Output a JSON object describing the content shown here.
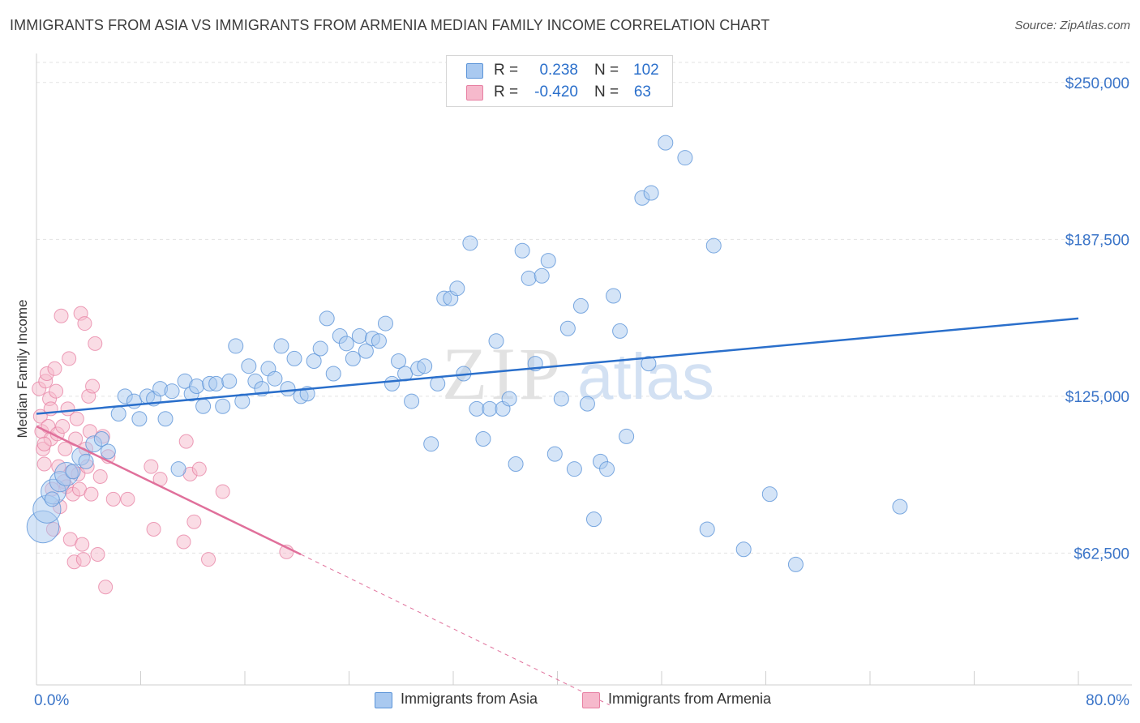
{
  "header": {
    "title": "IMMIGRANTS FROM ASIA VS IMMIGRANTS FROM ARMENIA MEDIAN FAMILY INCOME CORRELATION CHART",
    "source": "Source: ZipAtlas.com"
  },
  "legend": {
    "asia": {
      "r_label": "R =",
      "r_value": "0.238",
      "n_label": "N =",
      "n_value": "102"
    },
    "armenia": {
      "r_label": "R =",
      "r_value": "-0.420",
      "n_label": "N =",
      "n_value": "63"
    }
  },
  "bottom_legend": {
    "asia": "Immigrants from Asia",
    "armenia": "Immigrants from Armenia"
  },
  "watermark": {
    "zip": "ZIP",
    "atlas": "atlas"
  },
  "colors": {
    "asia_fill": "#a9c9f0",
    "asia_stroke": "#5b94d8",
    "asia_line": "#2a6fcb",
    "armenia_fill": "#f6b9cc",
    "armenia_stroke": "#e77fa2",
    "armenia_line": "#e0709b",
    "tick_label": "#3a74c8",
    "grid": "#e3e3e3"
  },
  "chart_data": {
    "type": "scatter",
    "title": "IMMIGRANTS FROM ASIA VS IMMIGRANTS FROM ARMENIA MEDIAN FAMILY INCOME CORRELATION CHART",
    "xlabel": "",
    "ylabel": "Median Family Income",
    "xlim": [
      0,
      80
    ],
    "ylim": [
      10000,
      258000
    ],
    "x_tick_labels": [
      "0.0%",
      "80.0%"
    ],
    "y_ticks": [
      62500,
      125000,
      187500,
      250000
    ],
    "y_tick_labels": [
      "$62,500",
      "$125,000",
      "$187,500",
      "$250,000"
    ],
    "grid": true,
    "series": [
      {
        "name": "Immigrants from Asia",
        "R": 0.238,
        "N": 102,
        "trend": {
          "x": [
            0,
            80
          ],
          "y": [
            118000,
            156000
          ]
        },
        "points": [
          [
            0.5,
            73000,
            2.2
          ],
          [
            0.8,
            80000,
            1.9
          ],
          [
            1.3,
            87000,
            1.7
          ],
          [
            1.8,
            91000,
            1.4
          ],
          [
            2.3,
            94000,
            1.6
          ],
          [
            3.4,
            101000,
            1.2
          ],
          [
            4.4,
            106000,
            1.1
          ],
          [
            5.0,
            108000,
            1.0
          ],
          [
            5.5,
            103000,
            1.0
          ],
          [
            6.3,
            118000,
            1.0
          ],
          [
            6.8,
            125000,
            1.0
          ],
          [
            7.5,
            123000,
            1.0
          ],
          [
            7.9,
            116000,
            1.0
          ],
          [
            8.5,
            125000,
            1.0
          ],
          [
            9.0,
            124000,
            1.0
          ],
          [
            9.5,
            128000,
            1.0
          ],
          [
            9.9,
            116000,
            1.0
          ],
          [
            10.4,
            127000,
            1.0
          ],
          [
            10.9,
            96000,
            1.0
          ],
          [
            11.4,
            131000,
            1.0
          ],
          [
            11.9,
            126000,
            1.0
          ],
          [
            12.3,
            129000,
            1.0
          ],
          [
            12.8,
            121000,
            1.0
          ],
          [
            13.3,
            130000,
            1.0
          ],
          [
            13.8,
            130000,
            1.0
          ],
          [
            14.3,
            121000,
            1.0
          ],
          [
            14.8,
            131000,
            1.0
          ],
          [
            15.3,
            145000,
            1.0
          ],
          [
            15.8,
            123000,
            1.0
          ],
          [
            16.3,
            137000,
            1.0
          ],
          [
            16.8,
            131000,
            1.0
          ],
          [
            17.3,
            128000,
            1.0
          ],
          [
            17.8,
            136000,
            1.0
          ],
          [
            18.3,
            132000,
            1.0
          ],
          [
            18.8,
            145000,
            1.0
          ],
          [
            19.3,
            128000,
            1.0
          ],
          [
            19.8,
            140000,
            1.0
          ],
          [
            20.3,
            125000,
            1.0
          ],
          [
            20.8,
            126000,
            1.0
          ],
          [
            21.3,
            139000,
            1.0
          ],
          [
            21.8,
            144000,
            1.0
          ],
          [
            22.3,
            156000,
            1.0
          ],
          [
            22.8,
            134000,
            1.0
          ],
          [
            23.3,
            149000,
            1.0
          ],
          [
            23.8,
            146000,
            1.0
          ],
          [
            24.3,
            140000,
            1.0
          ],
          [
            24.8,
            149000,
            1.0
          ],
          [
            25.3,
            143000,
            1.0
          ],
          [
            25.8,
            148000,
            1.0
          ],
          [
            26.3,
            147000,
            1.0
          ],
          [
            26.8,
            154000,
            1.0
          ],
          [
            27.3,
            130000,
            1.0
          ],
          [
            27.8,
            139000,
            1.0
          ],
          [
            28.3,
            134000,
            1.0
          ],
          [
            28.8,
            123000,
            1.0
          ],
          [
            29.3,
            136000,
            1.0
          ],
          [
            29.8,
            137000,
            1.0
          ],
          [
            30.3,
            106000,
            1.0
          ],
          [
            30.8,
            130000,
            1.0
          ],
          [
            31.3,
            164000,
            1.0
          ],
          [
            31.8,
            164000,
            1.0
          ],
          [
            32.3,
            168000,
            1.0
          ],
          [
            32.8,
            134000,
            1.0
          ],
          [
            33.3,
            186000,
            1.0
          ],
          [
            33.8,
            120000,
            1.0
          ],
          [
            34.3,
            108000,
            1.0
          ],
          [
            34.8,
            120000,
            1.0
          ],
          [
            35.3,
            147000,
            1.0
          ],
          [
            35.8,
            120000,
            1.0
          ],
          [
            36.3,
            124000,
            1.0
          ],
          [
            36.8,
            98000,
            1.0
          ],
          [
            37.3,
            183000,
            1.0
          ],
          [
            37.8,
            172000,
            1.0
          ],
          [
            38.3,
            138000,
            1.0
          ],
          [
            38.8,
            173000,
            1.0
          ],
          [
            39.3,
            179000,
            1.0
          ],
          [
            39.8,
            102000,
            1.0
          ],
          [
            40.3,
            124000,
            1.0
          ],
          [
            40.8,
            152000,
            1.0
          ],
          [
            41.3,
            96000,
            1.0
          ],
          [
            41.8,
            161000,
            1.0
          ],
          [
            42.3,
            122000,
            1.0
          ],
          [
            42.8,
            76000,
            1.0
          ],
          [
            43.3,
            99000,
            1.0
          ],
          [
            43.8,
            96000,
            1.0
          ],
          [
            44.3,
            165000,
            1.0
          ],
          [
            44.8,
            151000,
            1.0
          ],
          [
            45.3,
            109000,
            1.0
          ],
          [
            46.5,
            204000,
            1.0
          ],
          [
            47.2,
            206000,
            1.0
          ],
          [
            47.0,
            138000,
            1.0
          ],
          [
            48.3,
            226000,
            1.0
          ],
          [
            49.8,
            220000,
            1.0
          ],
          [
            51.5,
            72000,
            1.0
          ],
          [
            52.0,
            185000,
            1.0
          ],
          [
            54.3,
            64000,
            1.0
          ],
          [
            56.3,
            86000,
            1.0
          ],
          [
            58.3,
            58000,
            1.0
          ],
          [
            66.3,
            81000,
            1.0
          ],
          [
            1.2,
            84000,
            1.0
          ],
          [
            2.8,
            95000,
            1.0
          ],
          [
            3.8,
            99000,
            1.0
          ]
        ]
      },
      {
        "name": "Immigrants from Armenia",
        "R": -0.42,
        "N": 63,
        "trend": {
          "x": [
            0,
            20.3
          ],
          "y": [
            113000,
            62000
          ]
        },
        "trend_dashed": {
          "x": [
            20.3,
            44
          ],
          "y": [
            62000,
            2000
          ]
        },
        "points": [
          [
            0.2,
            128000
          ],
          [
            0.3,
            117000
          ],
          [
            0.4,
            111000
          ],
          [
            0.5,
            104000
          ],
          [
            0.6,
            98000
          ],
          [
            0.7,
            131000
          ],
          [
            0.8,
            134000
          ],
          [
            0.9,
            113000
          ],
          [
            1.0,
            124000
          ],
          [
            1.1,
            108000
          ],
          [
            1.2,
            88000
          ],
          [
            1.3,
            72000
          ],
          [
            1.4,
            136000
          ],
          [
            1.5,
            127000
          ],
          [
            1.6,
            110000
          ],
          [
            1.7,
            97000
          ],
          [
            1.8,
            81000
          ],
          [
            1.9,
            157000
          ],
          [
            2.0,
            113000
          ],
          [
            2.1,
            91000
          ],
          [
            2.2,
            104000
          ],
          [
            2.3,
            89000
          ],
          [
            2.4,
            120000
          ],
          [
            2.5,
            140000
          ],
          [
            2.6,
            68000
          ],
          [
            2.7,
            95000
          ],
          [
            2.8,
            86000
          ],
          [
            2.9,
            59000
          ],
          [
            3.0,
            108000
          ],
          [
            3.1,
            116000
          ],
          [
            3.2,
            94000
          ],
          [
            3.3,
            88000
          ],
          [
            3.4,
            158000
          ],
          [
            3.5,
            66000
          ],
          [
            3.6,
            60000
          ],
          [
            3.7,
            154000
          ],
          [
            3.8,
            104000
          ],
          [
            3.9,
            97000
          ],
          [
            4.0,
            125000
          ],
          [
            4.1,
            111000
          ],
          [
            4.2,
            86000
          ],
          [
            4.3,
            129000
          ],
          [
            4.5,
            146000
          ],
          [
            4.7,
            62000
          ],
          [
            4.9,
            93000
          ],
          [
            5.1,
            109000
          ],
          [
            5.3,
            49000
          ],
          [
            5.5,
            101000
          ],
          [
            5.9,
            84000
          ],
          [
            7.0,
            84000
          ],
          [
            8.8,
            97000
          ],
          [
            9.0,
            72000
          ],
          [
            9.5,
            92000
          ],
          [
            11.3,
            67000
          ],
          [
            11.5,
            107000
          ],
          [
            11.8,
            94000
          ],
          [
            12.1,
            75000
          ],
          [
            12.5,
            96000
          ],
          [
            13.2,
            60000
          ],
          [
            14.3,
            87000
          ],
          [
            19.2,
            63000
          ],
          [
            0.6,
            106000
          ],
          [
            1.1,
            120000
          ]
        ]
      }
    ]
  }
}
